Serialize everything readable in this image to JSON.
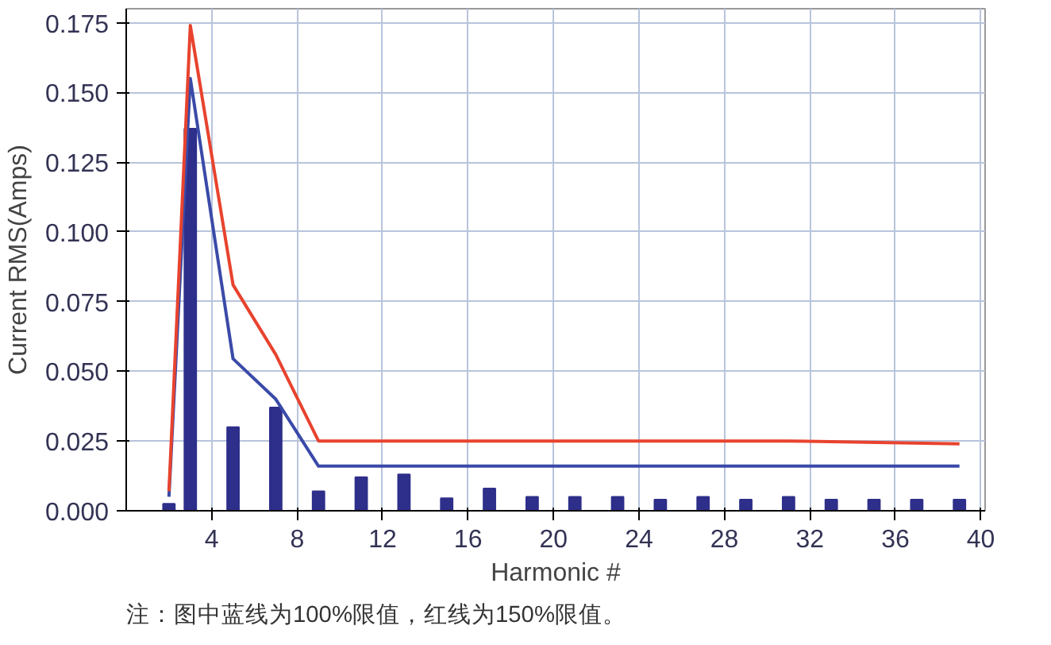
{
  "chart_data": {
    "type": "bar",
    "xlabel": "Harmonic #",
    "ylabel": "Current RMS(Amps)",
    "annotations": [
      "注：图中蓝线为100%限值，红线为150%限值。"
    ],
    "xlim": [
      0,
      40.2
    ],
    "ylim": [
      0,
      0.18
    ],
    "xticks": [
      4,
      8,
      12,
      16,
      20,
      24,
      28,
      32,
      36,
      40
    ],
    "yticks": [
      {
        "value": 0,
        "label": "0.000"
      },
      {
        "value": 0.025,
        "label": "0.025"
      },
      {
        "value": 0.05,
        "label": "0.050"
      },
      {
        "value": 0.075,
        "label": "0.075"
      },
      {
        "value": 0.1,
        "label": "0.100"
      },
      {
        "value": 0.125,
        "label": "0.125"
      },
      {
        "value": 0.15,
        "label": "0.150"
      },
      {
        "value": 0.175,
        "label": "0.175"
      }
    ],
    "grid": true,
    "series": [
      {
        "color": "#2e2f8a",
        "x": [
          2,
          3,
          5,
          7,
          9,
          11,
          13,
          15,
          17,
          19,
          21,
          23,
          25,
          27,
          29,
          31,
          33,
          35,
          37,
          39
        ],
        "values": [
          0.0025,
          0.137,
          0.03,
          0.037,
          0.007,
          0.012,
          0.013,
          0.0045,
          0.008,
          0.005,
          0.005,
          0.005,
          0.004,
          0.005,
          0.004,
          0.005,
          0.004,
          0.004,
          0.004,
          0.004
        ]
      },
      {
        "type": "line",
        "color": "#3a4aa8",
        "x": [
          2,
          3,
          5,
          7,
          9,
          31,
          39
        ],
        "values": [
          0.005,
          0.155,
          0.0545,
          0.04,
          0.016,
          0.016,
          0.016
        ]
      },
      {
        "type": "line",
        "color": "#e8432e",
        "x": [
          2,
          3,
          5,
          7,
          9,
          31,
          39
        ],
        "values": [
          0.007,
          0.174,
          0.081,
          0.056,
          0.025,
          0.025,
          0.024
        ]
      }
    ]
  }
}
